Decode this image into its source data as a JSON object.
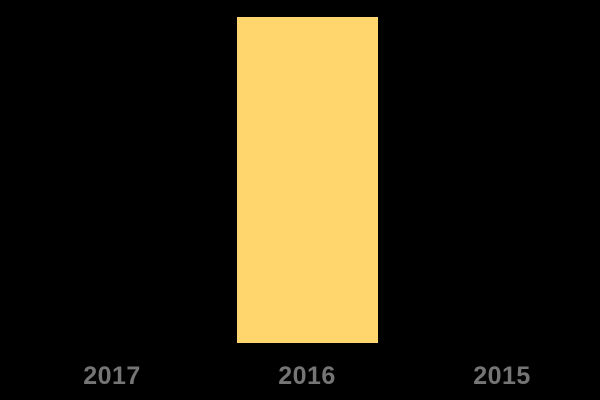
{
  "chart_data": {
    "type": "bar",
    "title": "",
    "xlabel": "",
    "ylabel": "",
    "categories": [
      "2017",
      "2016",
      "2015"
    ],
    "values": [
      0,
      1,
      0
    ],
    "ylim": [
      0,
      1.05
    ],
    "grid": false,
    "legend": false,
    "axes_visible": false,
    "colors": {
      "background": "#000000",
      "bar": "#ffd56e",
      "tick_label": "#757575"
    }
  }
}
